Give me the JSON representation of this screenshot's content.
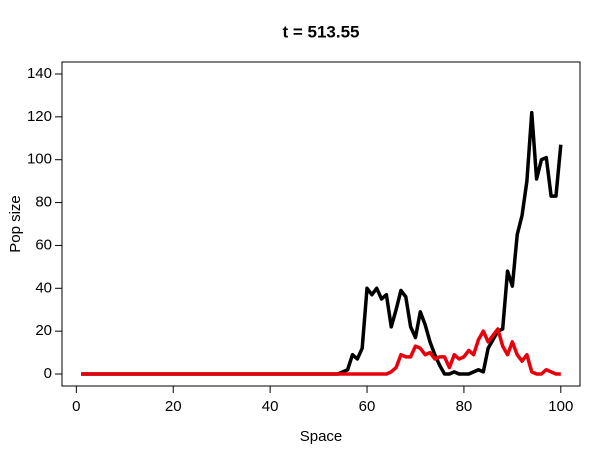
{
  "chart_data": {
    "type": "line",
    "title": "t = 513.55",
    "xlabel": "Space",
    "ylabel": "Pop size",
    "x": [
      1,
      2,
      3,
      4,
      5,
      6,
      7,
      8,
      9,
      10,
      11,
      12,
      13,
      14,
      15,
      16,
      17,
      18,
      19,
      20,
      21,
      22,
      23,
      24,
      25,
      26,
      27,
      28,
      29,
      30,
      31,
      32,
      33,
      34,
      35,
      36,
      37,
      38,
      39,
      40,
      41,
      42,
      43,
      44,
      45,
      46,
      47,
      48,
      49,
      50,
      51,
      52,
      53,
      54,
      55,
      56,
      57,
      58,
      59,
      60,
      61,
      62,
      63,
      64,
      65,
      66,
      67,
      68,
      69,
      70,
      71,
      72,
      73,
      74,
      75,
      76,
      77,
      78,
      79,
      80,
      81,
      82,
      83,
      84,
      85,
      86,
      87,
      88,
      89,
      90,
      91,
      92,
      93,
      94,
      95,
      96,
      97,
      98,
      99,
      100
    ],
    "series": [
      {
        "color": "#000000",
        "values": [
          0,
          0,
          0,
          0,
          0,
          0,
          0,
          0,
          0,
          0,
          0,
          0,
          0,
          0,
          0,
          0,
          0,
          0,
          0,
          0,
          0,
          0,
          0,
          0,
          0,
          0,
          0,
          0,
          0,
          0,
          0,
          0,
          0,
          0,
          0,
          0,
          0,
          0,
          0,
          0,
          0,
          0,
          0,
          0,
          0,
          0,
          0,
          0,
          0,
          0,
          0,
          0,
          0,
          0,
          1,
          2,
          9,
          7,
          12,
          40,
          37,
          40,
          35,
          37,
          22,
          30,
          39,
          36,
          22,
          17,
          29,
          23,
          15,
          9,
          4,
          0,
          0,
          1,
          0,
          0,
          0,
          1,
          2,
          1,
          12,
          16,
          20,
          21,
          48,
          41,
          65,
          74,
          90,
          122,
          91,
          100,
          101,
          83,
          83,
          107
        ]
      },
      {
        "color": "#e8000b",
        "values": [
          0,
          0,
          0,
          0,
          0,
          0,
          0,
          0,
          0,
          0,
          0,
          0,
          0,
          0,
          0,
          0,
          0,
          0,
          0,
          0,
          0,
          0,
          0,
          0,
          0,
          0,
          0,
          0,
          0,
          0,
          0,
          0,
          0,
          0,
          0,
          0,
          0,
          0,
          0,
          0,
          0,
          0,
          0,
          0,
          0,
          0,
          0,
          0,
          0,
          0,
          0,
          0,
          0,
          0,
          0,
          0,
          0,
          0,
          0,
          0,
          0,
          0,
          0,
          0,
          1,
          3,
          9,
          8,
          8,
          13,
          12,
          9,
          10,
          7,
          8,
          8,
          3,
          9,
          7,
          8,
          11,
          9,
          16,
          20,
          15,
          18,
          21,
          13,
          9,
          15,
          9,
          6,
          9,
          1,
          0,
          0,
          2,
          1,
          0,
          0
        ]
      }
    ],
    "xlim": [
      -2.96,
      103.96
    ],
    "ylim": [
      -5.6,
      145.6
    ],
    "xticks": [
      0,
      20,
      40,
      60,
      80,
      100
    ],
    "yticks": [
      0,
      20,
      40,
      60,
      80,
      100,
      120,
      140
    ]
  }
}
